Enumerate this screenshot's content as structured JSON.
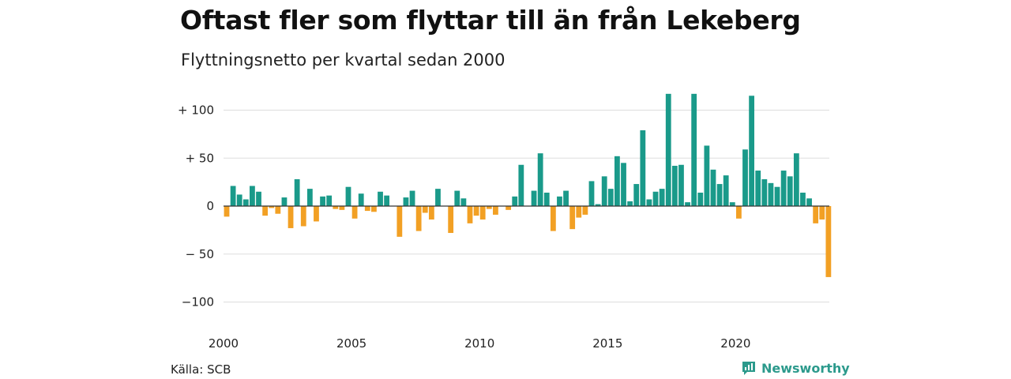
{
  "title": "Oftast fler som flyttar till än från Lekeberg",
  "subtitle": "Flyttningsnetto per kvartal sedan 2000",
  "source": "Källa: SCB",
  "brand": "Newsworthy",
  "colors": {
    "positive": "#1a9a8a",
    "negative": "#f2a024",
    "grid": "#dddddd",
    "zero": "#333333",
    "brand": "#2c9a8c"
  },
  "chart_data": {
    "type": "bar",
    "title": "Oftast fler som flyttar till än från Lekeberg",
    "subtitle": "Flyttningsnetto per kvartal sedan 2000",
    "xlabel": "",
    "ylabel": "",
    "ylim": [
      -110,
      120
    ],
    "grid": true,
    "y_ticks": [
      {
        "value": 100,
        "label": "+ 100"
      },
      {
        "value": 50,
        "label": "+  50"
      },
      {
        "value": 0,
        "label": "0"
      },
      {
        "value": -50,
        "label": "− 50"
      },
      {
        "value": -100,
        "label": "−100"
      }
    ],
    "x_ticks": [
      {
        "value": 2000,
        "label": "2000"
      },
      {
        "value": 2005,
        "label": "2005"
      },
      {
        "value": 2010,
        "label": "2010"
      },
      {
        "value": 2015,
        "label": "2015"
      },
      {
        "value": 2020,
        "label": "2020"
      }
    ],
    "start_year": 2000,
    "values": [
      -11,
      21,
      12,
      7,
      21,
      15,
      -10,
      -2,
      -8,
      9,
      -23,
      28,
      -21,
      18,
      -16,
      10,
      11,
      -3,
      -4,
      20,
      -13,
      13,
      -5,
      -6,
      15,
      11,
      0,
      -32,
      9,
      16,
      -26,
      -7,
      -14,
      18,
      0,
      -28,
      16,
      8,
      -18,
      -10,
      -14,
      -3,
      -9,
      0,
      -4,
      10,
      43,
      0,
      16,
      55,
      14,
      -26,
      10,
      16,
      -24,
      -12,
      -9,
      26,
      2,
      31,
      18,
      52,
      45,
      5,
      23,
      79,
      7,
      15,
      18,
      117,
      42,
      43,
      4,
      117,
      14,
      63,
      38,
      23,
      32,
      4,
      -13,
      59,
      115,
      37,
      28,
      24,
      20,
      37,
      31,
      55,
      14,
      8,
      -18,
      -14,
      -74
    ]
  }
}
